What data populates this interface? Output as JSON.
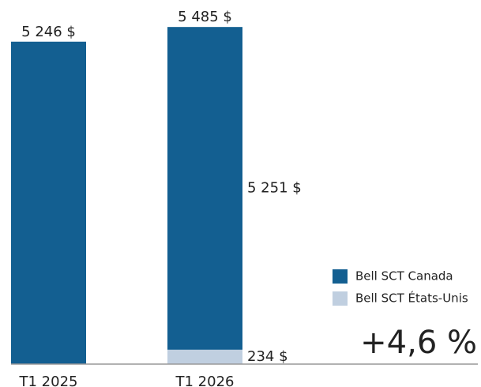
{
  "chart_data": {
    "type": "stacked-bar",
    "categories": [
      "T1 2025",
      "T1 2026"
    ],
    "series": [
      {
        "name": "Bell SCT Canada",
        "color": "#135f91",
        "values": [
          5246,
          5251
        ],
        "value_labels": [
          null,
          "5 251 $"
        ]
      },
      {
        "name": "Bell SCT États-Unis",
        "color": "#c0cfe0",
        "values": [
          null,
          234
        ],
        "value_labels": [
          null,
          "234 $"
        ]
      }
    ],
    "totals": [
      5246,
      5485
    ],
    "total_labels": [
      "5 246 $",
      "5 485 $"
    ],
    "ylim": [
      0,
      5500
    ],
    "annotation": "+4,6 %",
    "annotation_color": "#1a5a8c"
  }
}
